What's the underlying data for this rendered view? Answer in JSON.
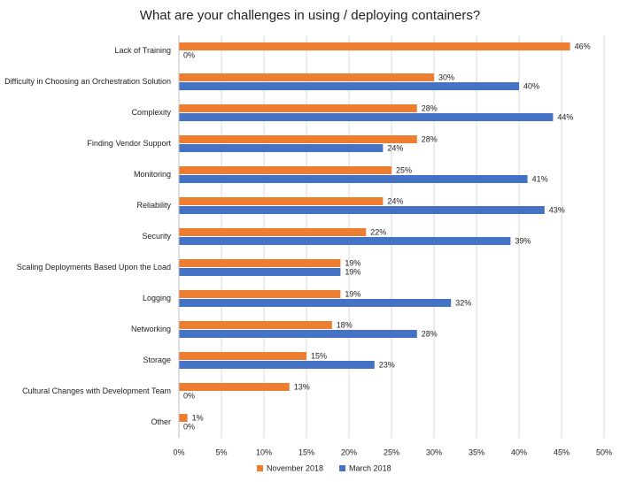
{
  "chart_data": {
    "type": "hbar",
    "title": "What are your challenges in using / deploying containers?",
    "categories": [
      "Lack of Training",
      "Difficulty in Choosing an Orchestration Solution",
      "Complexity",
      "Finding Vendor Support",
      "Monitoring",
      "Reliability",
      "Security",
      "Scaling Deployments Based Upon the Load",
      "Logging",
      "Networking",
      "Storage",
      "Cultural Changes with Development Team",
      "Other"
    ],
    "series": [
      {
        "name": "November 2018",
        "color": "#ed7d31",
        "values": [
          46,
          30,
          28,
          28,
          25,
          24,
          22,
          19,
          19,
          18,
          15,
          13,
          1
        ],
        "value_labels": [
          "46%",
          "30%",
          "28%",
          "28%",
          "25%",
          "24%",
          "22%",
          "19%",
          "19%",
          "18%",
          "15%",
          "13%",
          "1%"
        ]
      },
      {
        "name": "March 2018",
        "color": "#4472c4",
        "values": [
          0,
          40,
          44,
          24,
          41,
          43,
          39,
          19,
          32,
          28,
          23,
          0,
          0
        ],
        "value_labels": [
          "0%",
          "40%",
          "44%",
          "24%",
          "41%",
          "43%",
          "39%",
          "19%",
          "32%",
          "28%",
          "23%",
          "0%",
          "0%"
        ]
      }
    ],
    "xlim": [
      0,
      50
    ],
    "xticks": [
      {
        "value": 0,
        "label": "0%"
      },
      {
        "value": 5,
        "label": "5%"
      },
      {
        "value": 10,
        "label": "10%"
      },
      {
        "value": 15,
        "label": "15%"
      },
      {
        "value": 20,
        "label": "20%"
      },
      {
        "value": 25,
        "label": "25%"
      },
      {
        "value": 30,
        "label": "30%"
      },
      {
        "value": 35,
        "label": "35%"
      },
      {
        "value": 40,
        "label": "40%"
      },
      {
        "value": 45,
        "label": "45%"
      },
      {
        "value": 50,
        "label": "50%"
      }
    ],
    "grid": true
  }
}
